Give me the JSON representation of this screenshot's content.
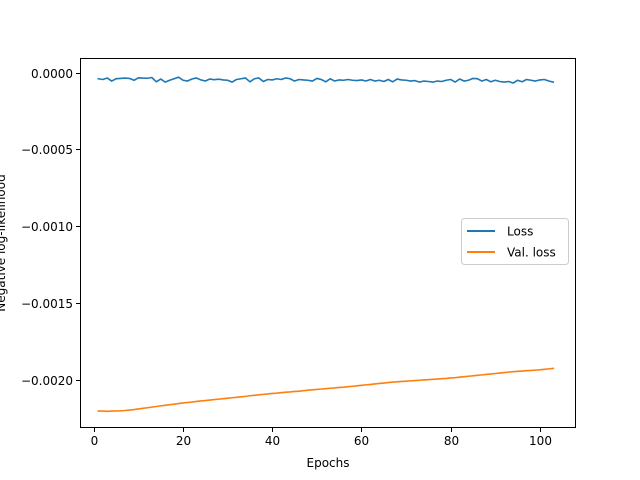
{
  "chart_data": {
    "type": "line",
    "title": "",
    "xlabel": "Epochs",
    "ylabel": "Negative log-likelihood",
    "xlim": [
      -3.1,
      108.1
    ],
    "ylim": [
      -0.002315,
      9.5e-05
    ],
    "xticks": [
      0,
      20,
      40,
      60,
      80,
      100
    ],
    "xtick_labels": [
      "0",
      "20",
      "40",
      "60",
      "80",
      "100"
    ],
    "yticks": [
      0.0,
      -0.0005,
      -0.001,
      -0.0015,
      -0.002
    ],
    "ytick_labels": [
      "0.0000",
      "−0.0005",
      "−0.0010",
      "−0.0015",
      "−0.0020"
    ],
    "grid": false,
    "legend_position": "center-right",
    "x": [
      1,
      2,
      3,
      4,
      5,
      6,
      7,
      8,
      9,
      10,
      11,
      12,
      13,
      14,
      15,
      16,
      17,
      18,
      19,
      20,
      21,
      22,
      23,
      24,
      25,
      26,
      27,
      28,
      29,
      30,
      31,
      32,
      33,
      34,
      35,
      36,
      37,
      38,
      39,
      40,
      41,
      42,
      43,
      44,
      45,
      46,
      47,
      48,
      49,
      50,
      51,
      52,
      53,
      54,
      55,
      56,
      57,
      58,
      59,
      60,
      61,
      62,
      63,
      64,
      65,
      66,
      67,
      68,
      69,
      70,
      71,
      72,
      73,
      74,
      75,
      76,
      77,
      78,
      79,
      80,
      81,
      82,
      83,
      84,
      85,
      86,
      87,
      88,
      89,
      90,
      91,
      92,
      93,
      94,
      95,
      96,
      97,
      98,
      99,
      100,
      101,
      102,
      103
    ],
    "series": [
      {
        "name": "Loss",
        "color": "#1f77b4",
        "values": [
          -4e-05,
          -4.5e-05,
          -3.5e-05,
          -5.5e-05,
          -4e-05,
          -3.8e-05,
          -3.6e-05,
          -3.8e-05,
          -5e-05,
          -3.4e-05,
          -3.6e-05,
          -3.7e-05,
          -3.2e-05,
          -6e-05,
          -4.2e-05,
          -6.2e-05,
          -5e-05,
          -4e-05,
          -3e-05,
          -5e-05,
          -5.5e-05,
          -4.2e-05,
          -3.5e-05,
          -4.8e-05,
          -5.5e-05,
          -4.2e-05,
          -4.6e-05,
          -4.3e-05,
          -4.8e-05,
          -5e-05,
          -6.2e-05,
          -4.5e-05,
          -4e-05,
          -3.5e-05,
          -6e-05,
          -4e-05,
          -3.5e-05,
          -5.8e-05,
          -4.5e-05,
          -4.8e-05,
          -4e-05,
          -4.5e-05,
          -3.5e-05,
          -4e-05,
          -5.5e-05,
          -4.5e-05,
          -4.8e-05,
          -5e-05,
          -5.5e-05,
          -3.8e-05,
          -4.5e-05,
          -6e-05,
          -4e-05,
          -5.5e-05,
          -4.8e-05,
          -5e-05,
          -4.5e-05,
          -5e-05,
          -5.2e-05,
          -4.8e-05,
          -5.5e-05,
          -4.5e-05,
          -5.5e-05,
          -5e-05,
          -5.8e-05,
          -4.5e-05,
          -6e-05,
          -4.2e-05,
          -4.8e-05,
          -5e-05,
          -5.5e-05,
          -5.2e-05,
          -6.2e-05,
          -5.5e-05,
          -5.8e-05,
          -6.2e-05,
          -5.5e-05,
          -5.8e-05,
          -5e-05,
          -4.5e-05,
          -6.2e-05,
          -4.2e-05,
          -5.5e-05,
          -5e-05,
          -3.8e-05,
          -4e-05,
          -5.5e-05,
          -4.5e-05,
          -6e-05,
          -5e-05,
          -5.8e-05,
          -6.2e-05,
          -5.8e-05,
          -6.8e-05,
          -5e-05,
          -6e-05,
          -4.5e-05,
          -5e-05,
          -5.5e-05,
          -4.8e-05,
          -4.5e-05,
          -5.5e-05,
          -6.2e-05
        ]
      },
      {
        "name": "Val. loss",
        "color": "#ff7f0e",
        "values": [
          -0.002205,
          -0.002205,
          -0.002206,
          -0.002205,
          -0.002204,
          -0.002203,
          -0.002201,
          -0.002198,
          -0.002195,
          -0.002191,
          -0.002187,
          -0.002183,
          -0.002179,
          -0.002175,
          -0.002171,
          -0.002167,
          -0.002163,
          -0.00216,
          -0.002156,
          -0.002152,
          -0.002149,
          -0.002146,
          -0.002142,
          -0.002139,
          -0.002136,
          -0.002133,
          -0.00213,
          -0.002127,
          -0.002124,
          -0.002121,
          -0.002118,
          -0.002115,
          -0.002112,
          -0.002109,
          -0.002105,
          -0.002102,
          -0.002099,
          -0.002096,
          -0.002093,
          -0.00209,
          -0.002088,
          -0.002085,
          -0.002082,
          -0.00208,
          -0.002077,
          -0.002075,
          -0.002072,
          -0.002069,
          -0.002066,
          -0.002064,
          -0.002061,
          -0.002059,
          -0.002056,
          -0.002054,
          -0.002051,
          -0.002049,
          -0.002046,
          -0.002043,
          -0.00204,
          -0.002037,
          -0.002034,
          -0.002031,
          -0.002028,
          -0.002025,
          -0.002022,
          -0.002019,
          -0.002016,
          -0.002014,
          -0.002012,
          -0.00201,
          -0.002008,
          -0.002006,
          -0.002004,
          -0.002002,
          -0.002,
          -0.001998,
          -0.001996,
          -0.001994,
          -0.001992,
          -0.001989,
          -0.001987,
          -0.001984,
          -0.001981,
          -0.001978,
          -0.001975,
          -0.001972,
          -0.001969,
          -0.001966,
          -0.001963,
          -0.00196,
          -0.001957,
          -0.001954,
          -0.001951,
          -0.001948,
          -0.001946,
          -0.001944,
          -0.001942,
          -0.00194,
          -0.001938,
          -0.001936,
          -0.001933,
          -0.00193,
          -0.001927
        ]
      }
    ]
  }
}
